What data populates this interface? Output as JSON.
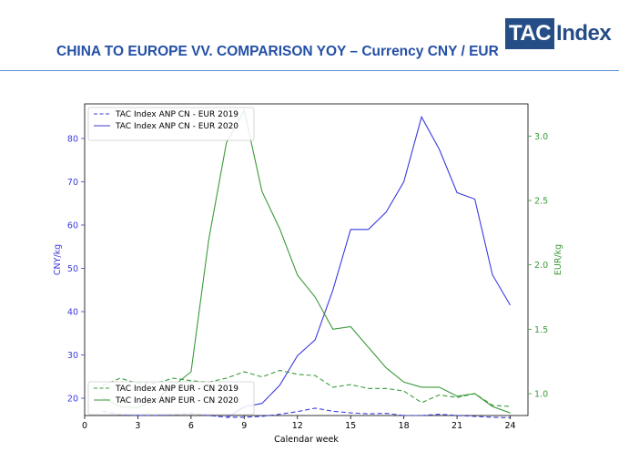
{
  "header": {
    "title": "CHINA TO EUROPE VV. COMPARISON YOY – Currency CNY / EUR",
    "logo_box": "TAC",
    "logo_rest": "Index"
  },
  "colors": {
    "blue": "#3b3bdd",
    "green": "#3a9a3a",
    "title": "#2450a5",
    "logo": "#254d86"
  },
  "chart_data": {
    "type": "line",
    "title": "",
    "xlabel": "Calendar week",
    "ylabel_left": "CNY/kg",
    "ylabel_right": "EUR/kg",
    "xlim": [
      0,
      25
    ],
    "ylim_left": [
      16,
      88
    ],
    "ylim_right": [
      0.83,
      3.25
    ],
    "xticks": [
      0,
      3,
      6,
      9,
      12,
      15,
      18,
      21,
      24
    ],
    "yticks_left": [
      20,
      30,
      40,
      50,
      60,
      70,
      80
    ],
    "yticks_right": [
      1.0,
      1.5,
      2.0,
      2.5,
      3.0
    ],
    "legend_left_placement": "upper-left",
    "legend_right_placement": "lower-left",
    "series": [
      {
        "name": "TAC Index ANP CN - EUR 2019",
        "axis": "left",
        "style": "dashed",
        "x": [
          1,
          2,
          3,
          4,
          5,
          6,
          7,
          8,
          9,
          10,
          11,
          12,
          13,
          14,
          15,
          16,
          17,
          18,
          19,
          20,
          21,
          22,
          23,
          24
        ],
        "values": [
          17.0,
          16.2,
          16.0,
          16.0,
          16.2,
          16.5,
          16.0,
          15.6,
          15.6,
          15.8,
          16.3,
          16.9,
          17.7,
          17.0,
          16.6,
          16.4,
          16.5,
          16.0,
          16.0,
          16.3,
          16.0,
          15.8,
          15.6,
          15.5
        ]
      },
      {
        "name": "TAC Index ANP CN - EUR 2020",
        "axis": "left",
        "style": "solid",
        "x": [
          8,
          9,
          10,
          11,
          12,
          13,
          14,
          15,
          16,
          17,
          18,
          19,
          20,
          21,
          22,
          23,
          24
        ],
        "values": [
          15.5,
          18.0,
          18.8,
          23.0,
          29.8,
          33.5,
          45.0,
          59.0,
          59.0,
          63.0,
          70.0,
          85.0,
          77.5,
          67.5,
          66.0,
          48.5,
          41.5
        ]
      },
      {
        "name": "TAC Index ANP EUR - CN 2019",
        "axis": "right",
        "style": "dashed",
        "x": [
          1,
          2,
          3,
          4,
          5,
          6,
          7,
          8,
          9,
          10,
          11,
          12,
          13,
          14,
          15,
          16,
          17,
          18,
          19,
          20,
          21,
          22,
          23,
          24
        ],
        "values": [
          1.06,
          1.12,
          1.08,
          1.08,
          1.12,
          1.1,
          1.09,
          1.12,
          1.17,
          1.13,
          1.18,
          1.15,
          1.14,
          1.05,
          1.07,
          1.04,
          1.04,
          1.02,
          0.93,
          0.99,
          0.97,
          1.0,
          0.91,
          0.9
        ]
      },
      {
        "name": "TAC Index ANP EUR - CN 2020",
        "axis": "right",
        "style": "solid",
        "x": [
          1,
          2,
          3,
          4,
          5,
          6,
          7,
          8,
          9,
          10,
          11,
          12,
          13,
          14,
          15,
          16,
          17,
          18,
          19,
          20,
          21,
          22,
          23,
          24
        ],
        "values": [
          0.97,
          0.9,
          0.89,
          0.95,
          1.06,
          1.17,
          2.2,
          2.95,
          3.2,
          2.57,
          2.28,
          1.92,
          1.75,
          1.5,
          1.52,
          1.36,
          1.2,
          1.09,
          1.05,
          1.05,
          0.98,
          1.0,
          0.9,
          0.85
        ]
      }
    ]
  }
}
